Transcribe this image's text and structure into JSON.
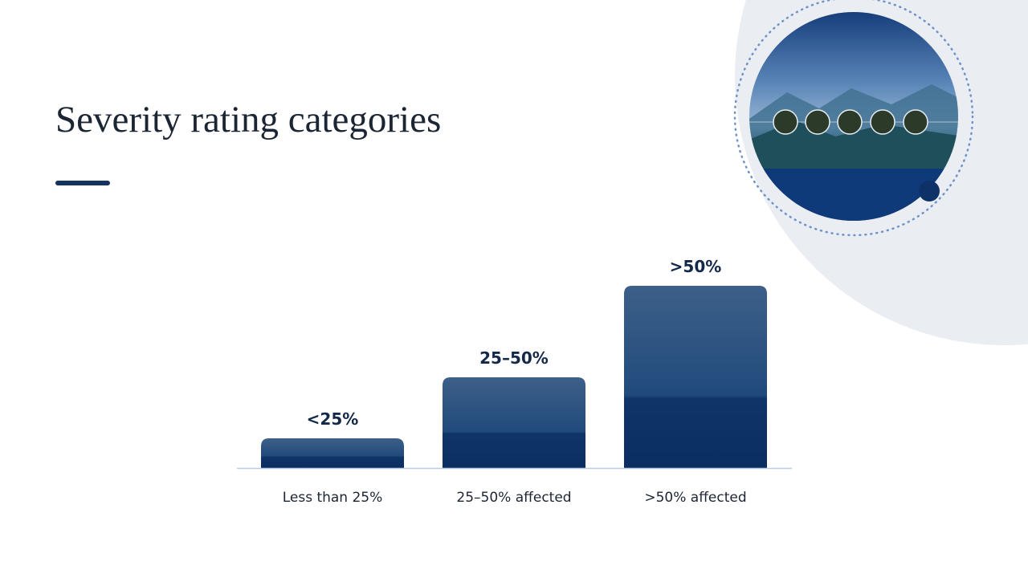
{
  "title": "Severity rating categories",
  "bars": [
    {
      "label": "<25%",
      "category": "Less than 25%"
    },
    {
      "label": "25–50%",
      "category": "25–50% affected"
    },
    {
      "label": ">50%",
      "category": ">50% affected"
    }
  ]
}
